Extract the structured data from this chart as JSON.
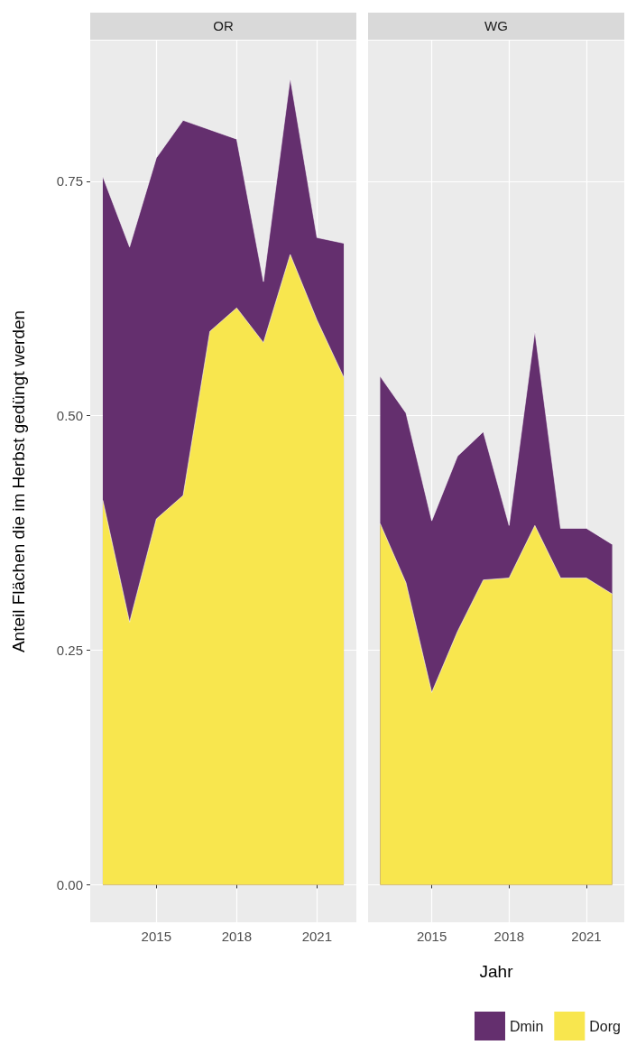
{
  "chart_data": [
    {
      "type": "area",
      "title": "OR",
      "ylabel": "Anteil Flächen die im Herbst gedüngt werden",
      "stacked": true,
      "grid": true,
      "x": [
        2013,
        2014,
        2015,
        2016,
        2017,
        2018,
        2019,
        2020,
        2021,
        2022
      ],
      "xlim": [
        2012.53,
        2022.47
      ],
      "xticks": [
        2015,
        2018,
        2021
      ],
      "ylim": [
        -0.04,
        0.9
      ],
      "yticks": [
        {
          "value": 0,
          "label": "0.00"
        },
        {
          "value": 0.25,
          "label": "0.25"
        },
        {
          "value": 0.5,
          "label": "0.50"
        },
        {
          "value": 0.75,
          "label": "0.75"
        }
      ],
      "series": [
        {
          "color": "#f8e64e",
          "values": [
            0.41,
            0.28,
            0.39,
            0.415,
            0.59,
            0.615,
            0.578,
            0.672,
            0.602,
            0.541
          ]
        },
        {
          "color": "#642f6e",
          "values": [
            0.345,
            0.4,
            0.385,
            0.4,
            0.215,
            0.18,
            0.065,
            0.188,
            0.088,
            0.143
          ]
        }
      ]
    },
    {
      "type": "area",
      "title": "WG",
      "xlabel": "Jahr",
      "stacked": true,
      "grid": true,
      "legend": "bottom right",
      "tick_labels": "x",
      "x": [
        2013,
        2014,
        2015,
        2016,
        2017,
        2018,
        2019,
        2020,
        2021,
        2022
      ],
      "xlim": [
        2012.53,
        2022.47
      ],
      "xticks": [
        2015,
        2018,
        2021
      ],
      "ylim": [
        -0.04,
        0.9
      ],
      "yticks": [
        0,
        0.25,
        0.5,
        0.75
      ],
      "series": [
        {
          "name": "Dorg",
          "color": "#f8e64e",
          "values": [
            0.385,
            0.322,
            0.205,
            0.27,
            0.325,
            0.327,
            0.383,
            0.327,
            0.327,
            0.31
          ]
        },
        {
          "name": "Dmin",
          "color": "#642f6e",
          "values": [
            0.157,
            0.181,
            0.183,
            0.187,
            0.158,
            0.056,
            0.207,
            0.053,
            0.053,
            0.053
          ]
        }
      ]
    }
  ]
}
